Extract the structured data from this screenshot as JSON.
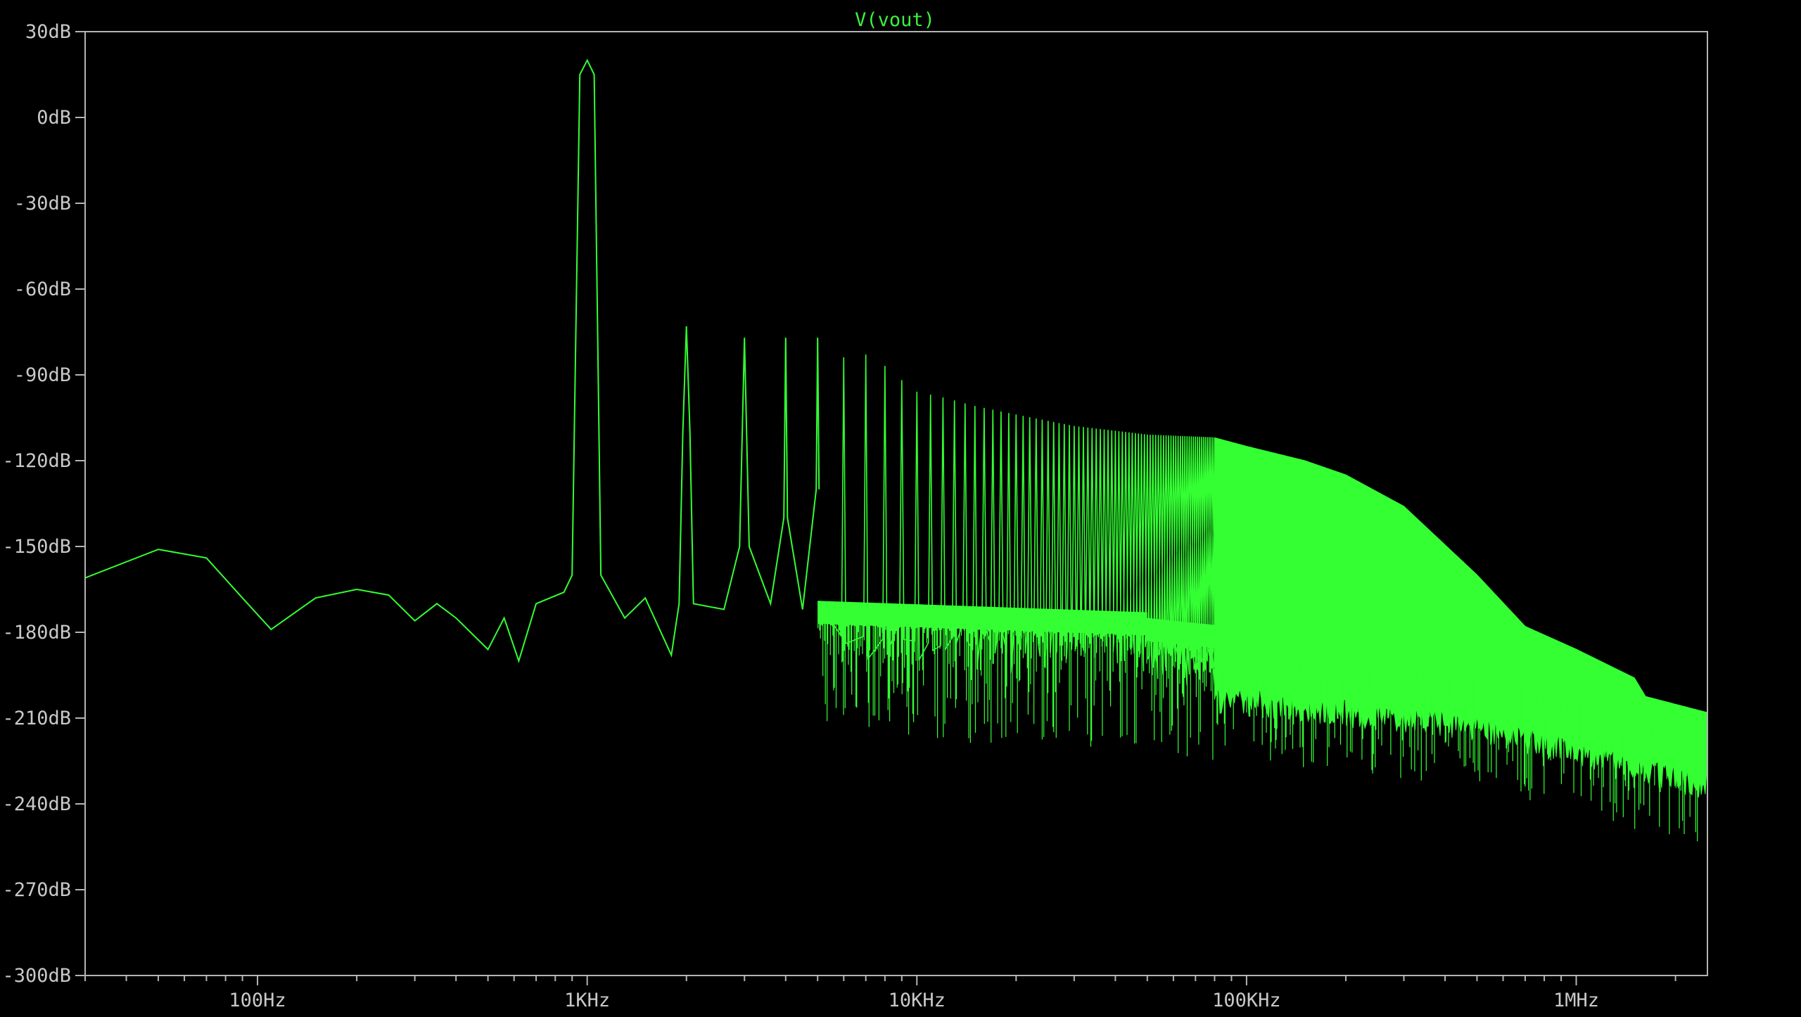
{
  "chart_data": {
    "type": "line",
    "title": "V(vout)",
    "x_scale": "log",
    "xlim": [
      30,
      2500000
    ],
    "ylim": [
      -300,
      30
    ],
    "x_ticks": [
      {
        "value": 100,
        "label": "100Hz"
      },
      {
        "value": 1000,
        "label": "1KHz"
      },
      {
        "value": 10000,
        "label": "10KHz"
      },
      {
        "value": 100000,
        "label": "100KHz"
      },
      {
        "value": 1000000,
        "label": "1MHz"
      }
    ],
    "y_ticks": [
      {
        "value": 30,
        "label": "30dB"
      },
      {
        "value": 0,
        "label": "0dB"
      },
      {
        "value": -30,
        "label": "-30dB"
      },
      {
        "value": -60,
        "label": "-60dB"
      },
      {
        "value": -90,
        "label": "-90dB"
      },
      {
        "value": -120,
        "label": "-120dB"
      },
      {
        "value": -150,
        "label": "-150dB"
      },
      {
        "value": -180,
        "label": "-180dB"
      },
      {
        "value": -210,
        "label": "-210dB"
      },
      {
        "value": -240,
        "label": "-240dB"
      },
      {
        "value": -270,
        "label": "-270dB"
      },
      {
        "value": -300,
        "label": "-300dB"
      }
    ],
    "grid": false,
    "series": [
      {
        "name": "V(vout)",
        "color": "#33ff33",
        "fundamental_hz": 1000,
        "points": [
          [
            30,
            -161
          ],
          [
            50,
            -151
          ],
          [
            70,
            -154
          ],
          [
            90,
            -168
          ],
          [
            110,
            -179
          ],
          [
            150,
            -168
          ],
          [
            200,
            -165
          ],
          [
            250,
            -167
          ],
          [
            300,
            -176
          ],
          [
            350,
            -170
          ],
          [
            400,
            -175
          ],
          [
            500,
            -186
          ],
          [
            560,
            -175
          ],
          [
            620,
            -190
          ],
          [
            700,
            -170
          ],
          [
            850,
            -166
          ],
          [
            900,
            -160
          ],
          [
            950,
            15
          ],
          [
            1000,
            20
          ],
          [
            1050,
            15
          ],
          [
            1100,
            -160
          ],
          [
            1300,
            -175
          ],
          [
            1500,
            -168
          ],
          [
            1800,
            -188
          ],
          [
            1900,
            -170
          ],
          [
            1950,
            -110
          ],
          [
            2000,
            -73
          ],
          [
            2050,
            -110
          ],
          [
            2100,
            -170
          ],
          [
            2600,
            -172
          ],
          [
            2900,
            -150
          ],
          [
            3000,
            -77
          ],
          [
            3100,
            -150
          ],
          [
            3600,
            -170
          ],
          [
            3950,
            -140
          ],
          [
            4000,
            -77
          ],
          [
            4050,
            -140
          ],
          [
            4500,
            -172
          ],
          [
            4950,
            -130
          ],
          [
            5000,
            -77
          ],
          [
            5050,
            -130
          ],
          [
            6000,
            -84
          ],
          [
            7000,
            -83
          ],
          [
            8000,
            -87
          ],
          [
            9000,
            -92
          ],
          [
            10000,
            -96
          ],
          [
            12000,
            -98
          ],
          [
            15000,
            -101
          ],
          [
            20000,
            -104
          ],
          [
            30000,
            -108
          ],
          [
            50000,
            -111
          ],
          [
            80000,
            -112
          ],
          [
            100000,
            -115
          ],
          [
            150000,
            -120
          ],
          [
            200000,
            -125
          ],
          [
            300000,
            -136
          ],
          [
            500000,
            -160
          ],
          [
            700000,
            -178
          ],
          [
            1000000,
            -186
          ],
          [
            1500000,
            -196
          ],
          [
            2000000,
            -220
          ],
          [
            2500000,
            -215
          ]
        ]
      }
    ]
  }
}
